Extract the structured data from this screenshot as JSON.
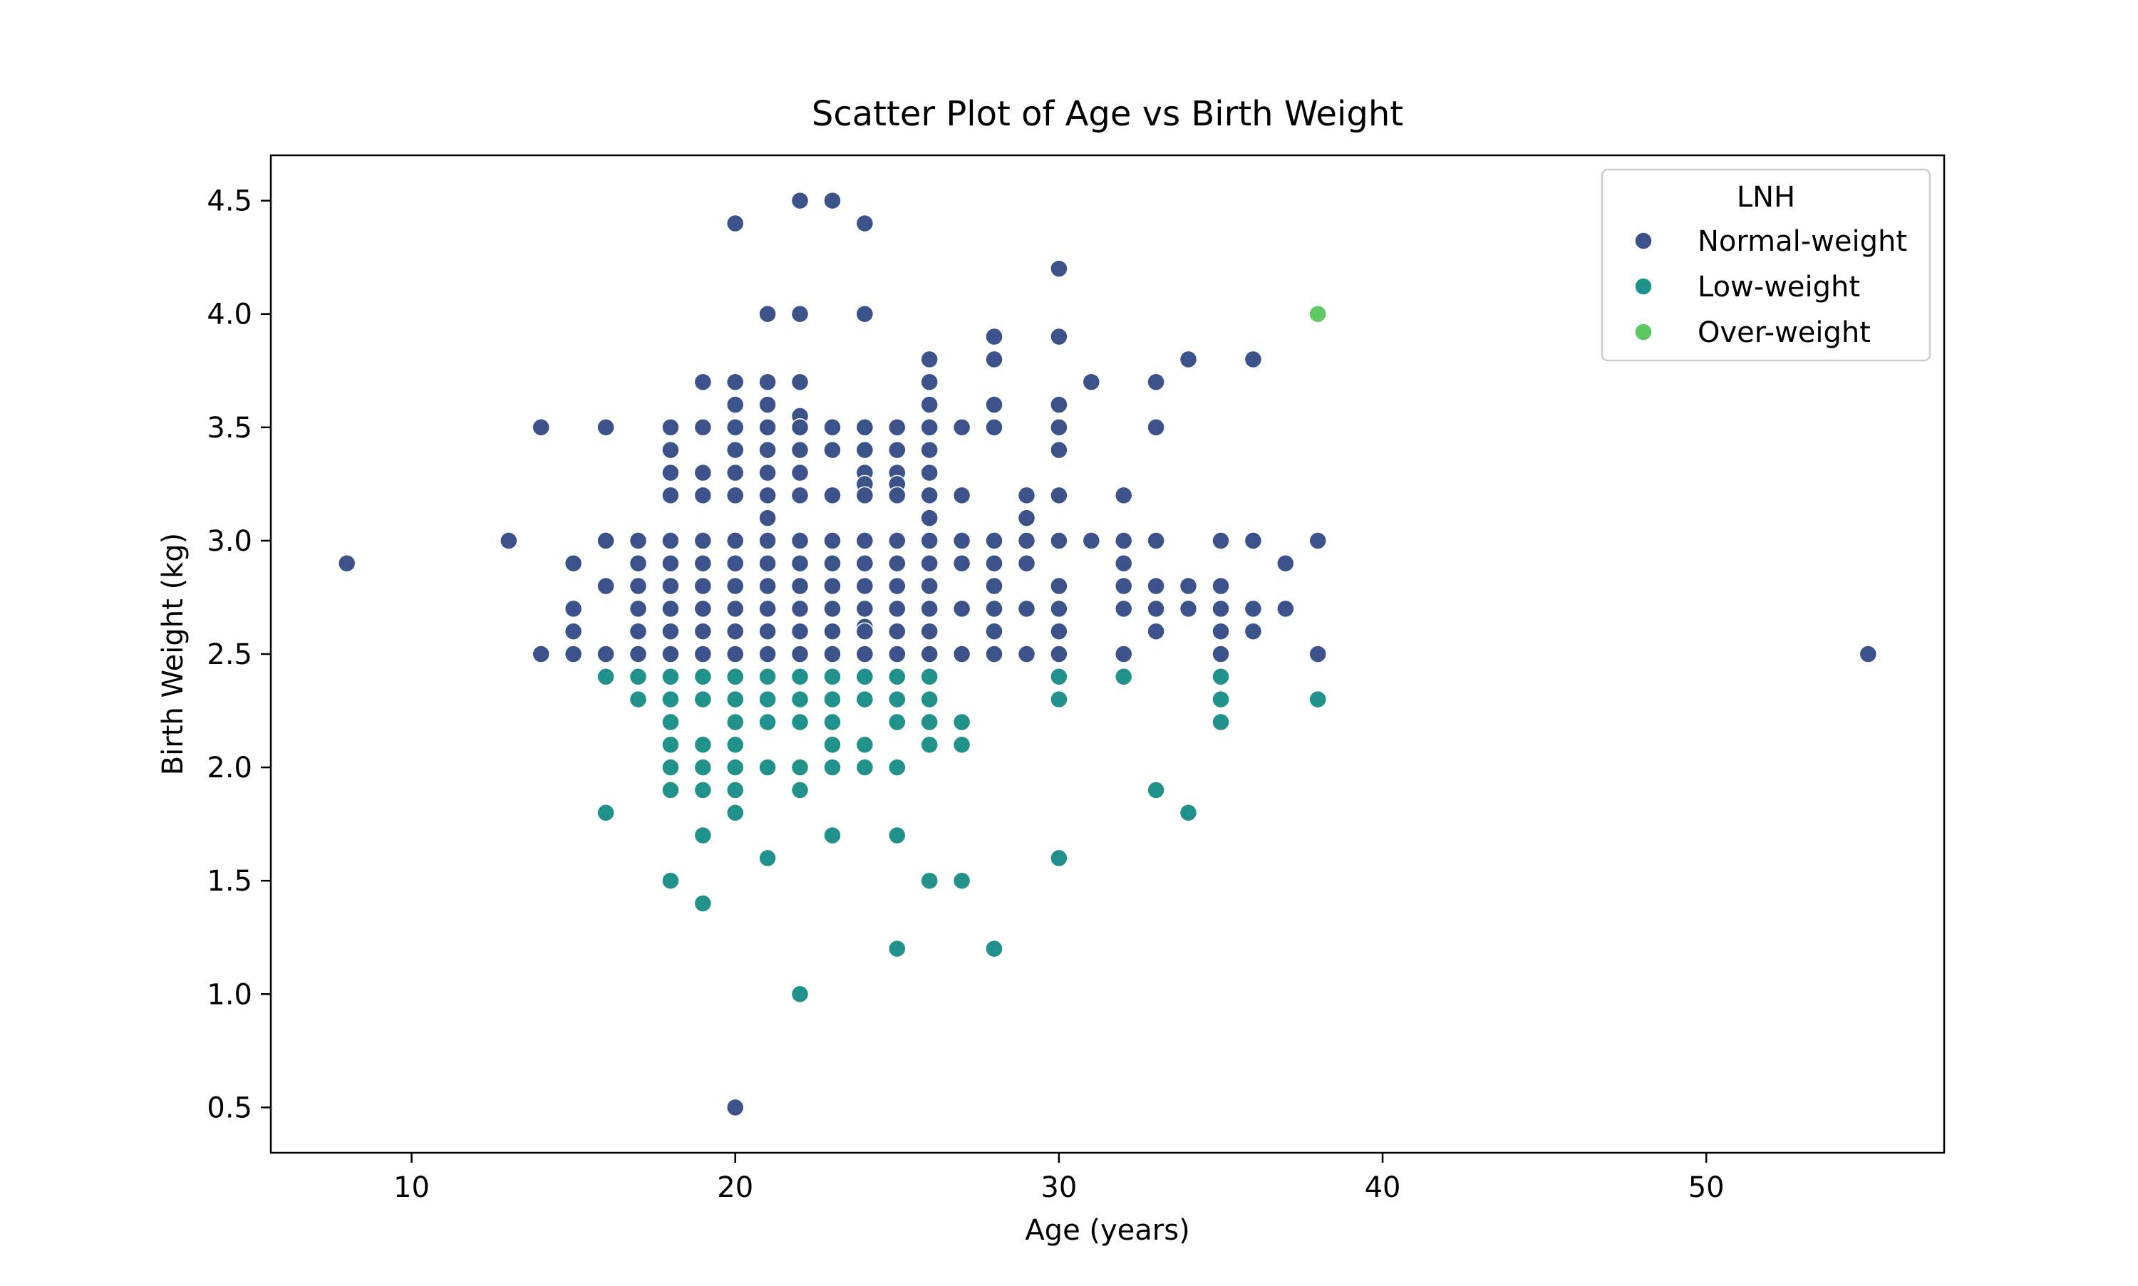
{
  "chart_data": {
    "type": "scatter",
    "title": "Scatter Plot of Age vs Birth Weight",
    "xlabel": "Age (years)",
    "ylabel": "Birth Weight (kg)",
    "xlim": [
      5.65,
      57.35
    ],
    "ylim": [
      0.3,
      4.7
    ],
    "xticks": [
      10,
      20,
      30,
      40,
      50
    ],
    "xtick_labels": [
      "10",
      "20",
      "30",
      "40",
      "50"
    ],
    "yticks": [
      0.5,
      1.0,
      1.5,
      2.0,
      2.5,
      3.0,
      3.5,
      4.0,
      4.5
    ],
    "ytick_labels": [
      "0.5",
      "1.0",
      "1.5",
      "2.0",
      "2.5",
      "3.0",
      "3.5",
      "4.0",
      "4.5"
    ],
    "grid": false,
    "legend": {
      "title": "LNH",
      "position": "top-right"
    },
    "series": [
      {
        "name": "Normal-weight",
        "color": "#3b528b",
        "points": [
          [
            8,
            2.9
          ],
          [
            13,
            3.0
          ],
          [
            14,
            3.5
          ],
          [
            14,
            2.5
          ],
          [
            15,
            2.9
          ],
          [
            15,
            2.7
          ],
          [
            15,
            2.6
          ],
          [
            15,
            2.5
          ],
          [
            16,
            3.5
          ],
          [
            16,
            3.0
          ],
          [
            16,
            2.8
          ],
          [
            16,
            2.5
          ],
          [
            17,
            3.0
          ],
          [
            17,
            2.9
          ],
          [
            17,
            2.8
          ],
          [
            17,
            2.7
          ],
          [
            17,
            2.6
          ],
          [
            17,
            2.5
          ],
          [
            18,
            3.5
          ],
          [
            18,
            3.4
          ],
          [
            18,
            3.3
          ],
          [
            18,
            3.2
          ],
          [
            18,
            3.0
          ],
          [
            18,
            2.9
          ],
          [
            18,
            2.8
          ],
          [
            18,
            2.7
          ],
          [
            18,
            2.6
          ],
          [
            18,
            2.5
          ],
          [
            19,
            3.7
          ],
          [
            19,
            3.5
          ],
          [
            19,
            3.3
          ],
          [
            19,
            3.2
          ],
          [
            19,
            3.0
          ],
          [
            19,
            2.9
          ],
          [
            19,
            2.8
          ],
          [
            19,
            2.7
          ],
          [
            19,
            2.6
          ],
          [
            19,
            2.5
          ],
          [
            20,
            4.4
          ],
          [
            20,
            3.7
          ],
          [
            20,
            3.6
          ],
          [
            20,
            3.5
          ],
          [
            20,
            3.4
          ],
          [
            20,
            3.3
          ],
          [
            20,
            3.2
          ],
          [
            20,
            3.0
          ],
          [
            20,
            2.9
          ],
          [
            20,
            2.8
          ],
          [
            20,
            2.7
          ],
          [
            20,
            2.6
          ],
          [
            20,
            2.5
          ],
          [
            20,
            0.5
          ],
          [
            21,
            4.0
          ],
          [
            21,
            3.7
          ],
          [
            21,
            3.6
          ],
          [
            21,
            3.5
          ],
          [
            21,
            3.4
          ],
          [
            21,
            3.3
          ],
          [
            21,
            3.2
          ],
          [
            21,
            3.1
          ],
          [
            21,
            3.0
          ],
          [
            21,
            2.9
          ],
          [
            21,
            2.8
          ],
          [
            21,
            2.7
          ],
          [
            21,
            2.6
          ],
          [
            21,
            2.5
          ],
          [
            22,
            4.5
          ],
          [
            22,
            4.0
          ],
          [
            22,
            3.7
          ],
          [
            22,
            3.55
          ],
          [
            22,
            3.5
          ],
          [
            22,
            3.4
          ],
          [
            22,
            3.3
          ],
          [
            22,
            3.2
          ],
          [
            22,
            3.0
          ],
          [
            22,
            2.9
          ],
          [
            22,
            2.8
          ],
          [
            22,
            2.7
          ],
          [
            22,
            2.6
          ],
          [
            22,
            2.5
          ],
          [
            23,
            4.5
          ],
          [
            23,
            3.5
          ],
          [
            23,
            3.4
          ],
          [
            23,
            3.2
          ],
          [
            23,
            3.0
          ],
          [
            23,
            2.9
          ],
          [
            23,
            2.8
          ],
          [
            23,
            2.7
          ],
          [
            23,
            2.6
          ],
          [
            23,
            2.5
          ],
          [
            24,
            4.4
          ],
          [
            24,
            4.0
          ],
          [
            24,
            3.5
          ],
          [
            24,
            3.4
          ],
          [
            24,
            3.3
          ],
          [
            24,
            3.25
          ],
          [
            24,
            3.2
          ],
          [
            24,
            3.0
          ],
          [
            24,
            2.9
          ],
          [
            24,
            2.8
          ],
          [
            24,
            2.7
          ],
          [
            24,
            2.62
          ],
          [
            24,
            2.6
          ],
          [
            24,
            2.5
          ],
          [
            25,
            3.5
          ],
          [
            25,
            3.4
          ],
          [
            25,
            3.3
          ],
          [
            25,
            3.25
          ],
          [
            25,
            3.2
          ],
          [
            25,
            3.0
          ],
          [
            25,
            2.9
          ],
          [
            25,
            2.8
          ],
          [
            25,
            2.7
          ],
          [
            25,
            2.6
          ],
          [
            25,
            2.5
          ],
          [
            26,
            3.8
          ],
          [
            26,
            3.7
          ],
          [
            26,
            3.6
          ],
          [
            26,
            3.5
          ],
          [
            26,
            3.4
          ],
          [
            26,
            3.3
          ],
          [
            26,
            3.2
          ],
          [
            26,
            3.1
          ],
          [
            26,
            3.0
          ],
          [
            26,
            2.9
          ],
          [
            26,
            2.8
          ],
          [
            26,
            2.7
          ],
          [
            26,
            2.6
          ],
          [
            26,
            2.5
          ],
          [
            27,
            3.5
          ],
          [
            27,
            3.2
          ],
          [
            27,
            3.0
          ],
          [
            27,
            2.9
          ],
          [
            27,
            2.7
          ],
          [
            27,
            2.5
          ],
          [
            28,
            3.9
          ],
          [
            28,
            3.8
          ],
          [
            28,
            3.6
          ],
          [
            28,
            3.5
          ],
          [
            28,
            3.0
          ],
          [
            28,
            2.9
          ],
          [
            28,
            2.8
          ],
          [
            28,
            2.7
          ],
          [
            28,
            2.6
          ],
          [
            28,
            2.5
          ],
          [
            29,
            3.2
          ],
          [
            29,
            3.1
          ],
          [
            29,
            3.0
          ],
          [
            29,
            2.9
          ],
          [
            29,
            2.7
          ],
          [
            29,
            2.5
          ],
          [
            30,
            4.2
          ],
          [
            30,
            3.9
          ],
          [
            30,
            3.6
          ],
          [
            30,
            3.5
          ],
          [
            30,
            3.4
          ],
          [
            30,
            3.2
          ],
          [
            30,
            3.0
          ],
          [
            30,
            2.8
          ],
          [
            30,
            2.7
          ],
          [
            30,
            2.6
          ],
          [
            30,
            2.5
          ],
          [
            31,
            3.7
          ],
          [
            31,
            3.0
          ],
          [
            32,
            3.2
          ],
          [
            32,
            3.0
          ],
          [
            32,
            2.9
          ],
          [
            32,
            2.8
          ],
          [
            32,
            2.7
          ],
          [
            32,
            2.5
          ],
          [
            33,
            3.7
          ],
          [
            33,
            3.5
          ],
          [
            33,
            3.0
          ],
          [
            33,
            2.8
          ],
          [
            33,
            2.7
          ],
          [
            33,
            2.6
          ],
          [
            34,
            3.8
          ],
          [
            34,
            2.8
          ],
          [
            34,
            2.7
          ],
          [
            35,
            3.0
          ],
          [
            35,
            2.8
          ],
          [
            35,
            2.7
          ],
          [
            35,
            2.6
          ],
          [
            35,
            2.5
          ],
          [
            36,
            3.8
          ],
          [
            36,
            3.0
          ],
          [
            36,
            2.7
          ],
          [
            36,
            2.6
          ],
          [
            37,
            2.9
          ],
          [
            37,
            2.7
          ],
          [
            38,
            3.0
          ],
          [
            38,
            2.5
          ],
          [
            55,
            2.5
          ]
        ]
      },
      {
        "name": "Low-weight",
        "color": "#21918c",
        "points": [
          [
            16,
            2.4
          ],
          [
            16,
            1.8
          ],
          [
            17,
            2.4
          ],
          [
            17,
            2.3
          ],
          [
            18,
            2.4
          ],
          [
            18,
            2.3
          ],
          [
            18,
            2.2
          ],
          [
            18,
            2.1
          ],
          [
            18,
            2.0
          ],
          [
            18,
            1.9
          ],
          [
            18,
            1.5
          ],
          [
            19,
            2.4
          ],
          [
            19,
            2.3
          ],
          [
            19,
            2.1
          ],
          [
            19,
            2.0
          ],
          [
            19,
            1.9
          ],
          [
            19,
            1.7
          ],
          [
            19,
            1.4
          ],
          [
            20,
            2.4
          ],
          [
            20,
            2.3
          ],
          [
            20,
            2.2
          ],
          [
            20,
            2.1
          ],
          [
            20,
            2.0
          ],
          [
            20,
            1.9
          ],
          [
            20,
            1.8
          ],
          [
            21,
            2.4
          ],
          [
            21,
            2.3
          ],
          [
            21,
            2.2
          ],
          [
            21,
            2.0
          ],
          [
            21,
            1.6
          ],
          [
            22,
            2.4
          ],
          [
            22,
            2.3
          ],
          [
            22,
            2.2
          ],
          [
            22,
            2.0
          ],
          [
            22,
            1.9
          ],
          [
            22,
            1.0
          ],
          [
            23,
            2.4
          ],
          [
            23,
            2.3
          ],
          [
            23,
            2.2
          ],
          [
            23,
            2.1
          ],
          [
            23,
            2.0
          ],
          [
            23,
            1.7
          ],
          [
            24,
            2.4
          ],
          [
            24,
            2.3
          ],
          [
            24,
            2.1
          ],
          [
            24,
            2.0
          ],
          [
            25,
            2.4
          ],
          [
            25,
            2.3
          ],
          [
            25,
            2.2
          ],
          [
            25,
            2.0
          ],
          [
            25,
            1.7
          ],
          [
            25,
            1.2
          ],
          [
            26,
            2.4
          ],
          [
            26,
            2.3
          ],
          [
            26,
            2.2
          ],
          [
            26,
            2.1
          ],
          [
            26,
            1.5
          ],
          [
            27,
            2.2
          ],
          [
            27,
            2.1
          ],
          [
            27,
            1.5
          ],
          [
            28,
            1.2
          ],
          [
            30,
            2.4
          ],
          [
            30,
            2.3
          ],
          [
            30,
            1.6
          ],
          [
            32,
            2.4
          ],
          [
            33,
            1.9
          ],
          [
            34,
            1.8
          ],
          [
            35,
            2.4
          ],
          [
            35,
            2.3
          ],
          [
            35,
            2.2
          ],
          [
            38,
            2.3
          ]
        ]
      },
      {
        "name": "Over-weight",
        "color": "#5ec962",
        "points": [
          [
            38,
            4.0
          ]
        ]
      }
    ]
  }
}
